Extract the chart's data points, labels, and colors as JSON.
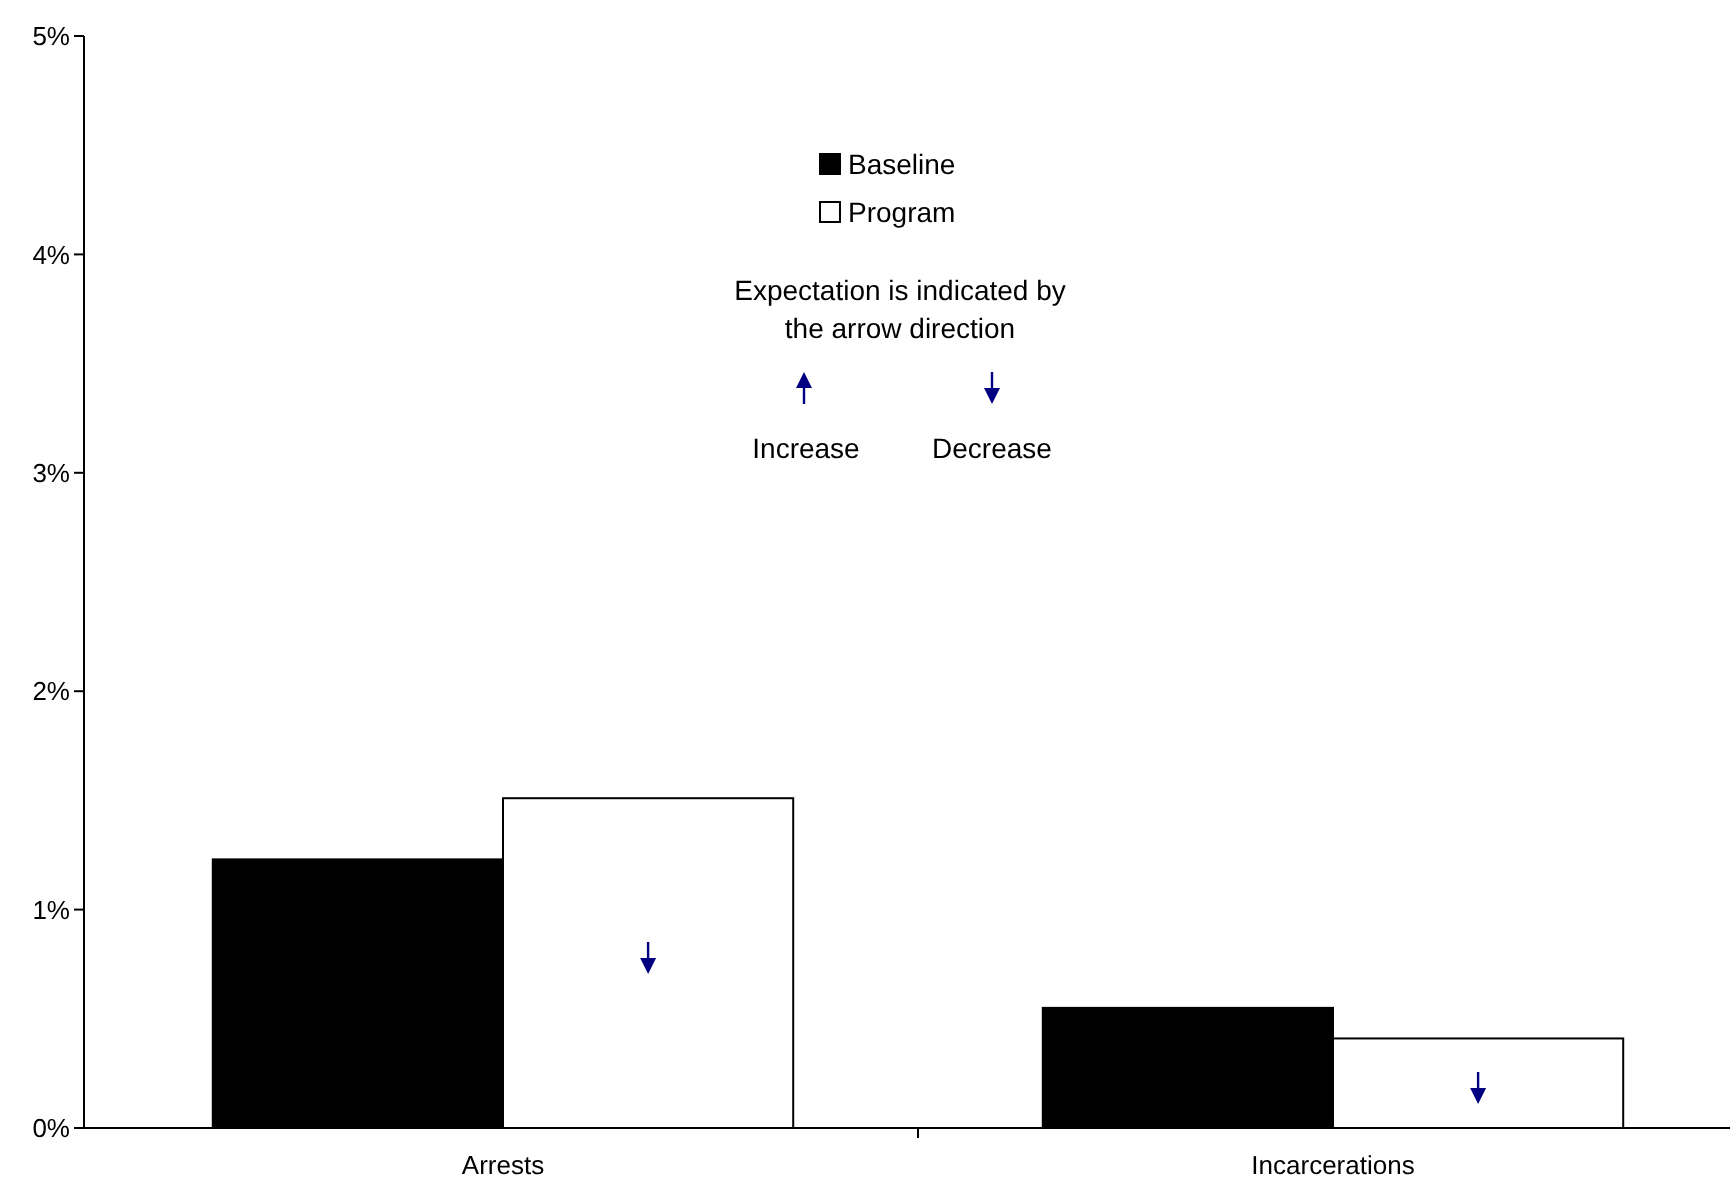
{
  "chart_data": {
    "type": "bar",
    "categories": [
      "Arrests",
      "Incarcerations"
    ],
    "series": [
      {
        "name": "Baseline",
        "color": "#000000",
        "values": [
          1.23,
          0.55
        ]
      },
      {
        "name": "Program",
        "color": "#ffffff",
        "values": [
          1.51,
          0.41
        ]
      }
    ],
    "ylim": [
      0,
      5
    ],
    "yticks": [
      {
        "value": 0,
        "label": "0%"
      },
      {
        "value": 1,
        "label": "1%"
      },
      {
        "value": 2,
        "label": "2%"
      },
      {
        "value": 3,
        "label": "3%"
      },
      {
        "value": 4,
        "label": "4%"
      },
      {
        "value": 5,
        "label": "5%"
      }
    ],
    "grid": false,
    "legend": "top",
    "annotations": [
      "Expectation is indicated by the arrow direction",
      "Increase",
      "Decrease"
    ]
  }
}
